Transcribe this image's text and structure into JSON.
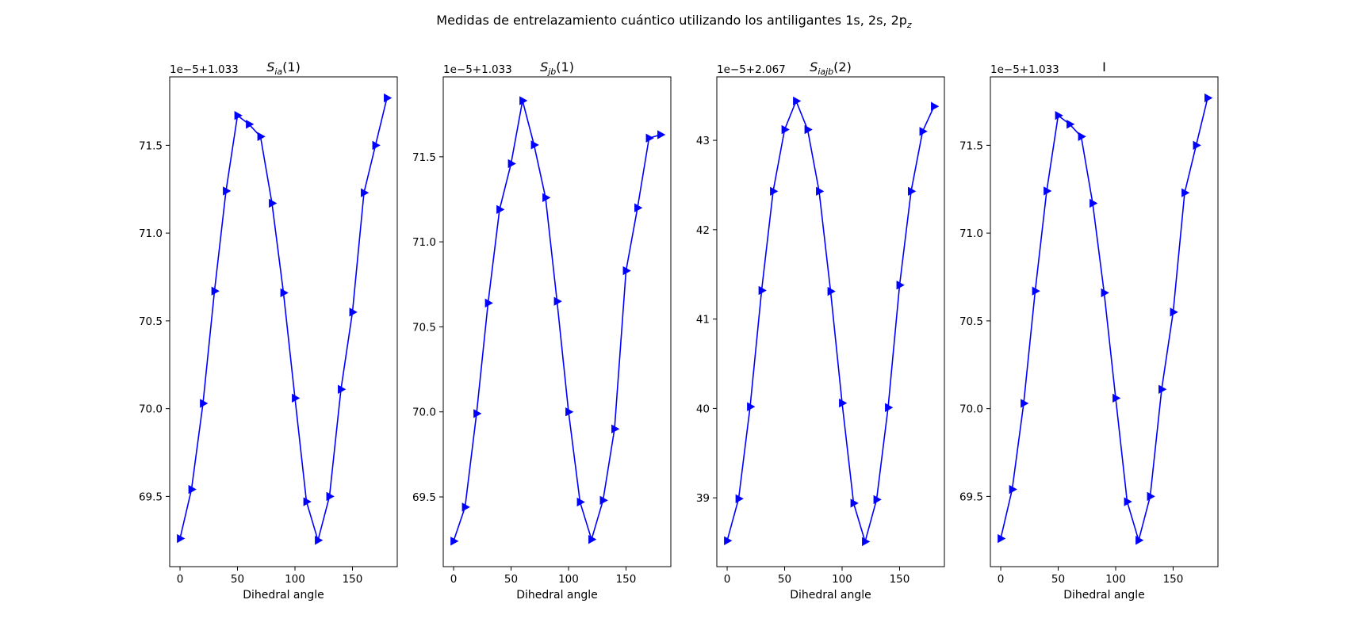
{
  "figure": {
    "title_main": "Medidas de entrelazamiento cuántico utilizando los antiligantes 1s, 2s, 2p",
    "title_sub": "z"
  },
  "colors": {
    "line": "#0000ff",
    "axes": "#000000",
    "background": "#ffffff"
  },
  "chart_data": [
    {
      "type": "line",
      "title": "S_ia(1)",
      "title_main": "S",
      "title_sub": "ia",
      "title_paren": "(1)",
      "xlabel": "Dihedral angle",
      "ylabel": "",
      "offset_label": "1e−5+1.033",
      "marker": "triangle-right",
      "x": [
        0,
        10,
        20,
        30,
        40,
        50,
        60,
        70,
        80,
        90,
        100,
        110,
        120,
        130,
        140,
        150,
        160,
        170,
        180
      ],
      "y": [
        69.26,
        69.54,
        70.03,
        70.67,
        71.24,
        71.67,
        71.62,
        71.55,
        71.17,
        70.66,
        70.06,
        69.47,
        69.25,
        69.5,
        70.11,
        70.55,
        71.23,
        71.5,
        71.77
      ],
      "xlim": [
        -9,
        189
      ],
      "ylim": [
        69.1,
        71.89
      ],
      "xticks": [
        0,
        50,
        100,
        150
      ],
      "yticks": [
        69.5,
        70.0,
        70.5,
        71.0,
        71.5
      ],
      "ytick_labels": [
        "69.5",
        "70.0",
        "70.5",
        "71.0",
        "71.5"
      ]
    },
    {
      "type": "line",
      "title": "S_jb(1)",
      "title_main": "S",
      "title_sub": "jb",
      "title_paren": "(1)",
      "xlabel": "Dihedral angle",
      "ylabel": "",
      "offset_label": "1e−5+1.033",
      "marker": "triangle-right",
      "x": [
        0,
        10,
        20,
        30,
        40,
        50,
        60,
        70,
        80,
        90,
        100,
        110,
        120,
        130,
        140,
        150,
        160,
        170,
        180
      ],
      "y": [
        69.24,
        69.44,
        69.99,
        70.64,
        71.19,
        71.46,
        71.83,
        71.57,
        71.26,
        70.65,
        70.0,
        69.47,
        69.25,
        69.48,
        69.9,
        70.83,
        71.2,
        71.61,
        71.63
      ],
      "xlim": [
        -9,
        189
      ],
      "ylim": [
        69.09,
        71.97
      ],
      "xticks": [
        0,
        50,
        100,
        150
      ],
      "yticks": [
        69.5,
        70.0,
        70.5,
        71.0,
        71.5
      ],
      "ytick_labels": [
        "69.5",
        "70.0",
        "70.5",
        "71.0",
        "71.5"
      ]
    },
    {
      "type": "line",
      "title": "S_iajb(2)",
      "title_main": "S",
      "title_sub": "iajb",
      "title_paren": "(2)",
      "xlabel": "Dihedral angle",
      "ylabel": "",
      "offset_label": "1e−5+2.067",
      "marker": "triangle-right",
      "x": [
        0,
        10,
        20,
        30,
        40,
        50,
        60,
        70,
        80,
        90,
        100,
        110,
        120,
        130,
        140,
        150,
        160,
        170,
        180
      ],
      "y": [
        38.52,
        38.99,
        40.02,
        41.32,
        42.43,
        43.12,
        43.44,
        43.12,
        42.43,
        41.31,
        40.06,
        38.94,
        38.51,
        38.98,
        40.01,
        41.38,
        42.43,
        43.1,
        43.38
      ],
      "xlim": [
        -9,
        189
      ],
      "ylim": [
        38.23,
        43.71
      ],
      "xticks": [
        0,
        50,
        100,
        150
      ],
      "yticks": [
        39,
        40,
        41,
        42,
        43
      ],
      "ytick_labels": [
        "39",
        "40",
        "41",
        "42",
        "43"
      ]
    },
    {
      "type": "line",
      "title": "I",
      "title_main": "I",
      "title_sub": "",
      "title_paren": "",
      "xlabel": "Dihedral angle",
      "ylabel": "",
      "offset_label": "1e−5+1.033",
      "marker": "triangle-right",
      "x": [
        0,
        10,
        20,
        30,
        40,
        50,
        60,
        70,
        80,
        90,
        100,
        110,
        120,
        130,
        140,
        150,
        160,
        170,
        180
      ],
      "y": [
        69.26,
        69.54,
        70.03,
        70.67,
        71.24,
        71.67,
        71.62,
        71.55,
        71.17,
        70.66,
        70.06,
        69.47,
        69.25,
        69.5,
        70.11,
        70.55,
        71.23,
        71.5,
        71.77
      ],
      "xlim": [
        -9,
        189
      ],
      "ylim": [
        69.1,
        71.89
      ],
      "xticks": [
        0,
        50,
        100,
        150
      ],
      "yticks": [
        69.5,
        70.0,
        70.5,
        71.0,
        71.5
      ],
      "ytick_labels": [
        "69.5",
        "70.0",
        "70.5",
        "71.0",
        "71.5"
      ]
    }
  ]
}
